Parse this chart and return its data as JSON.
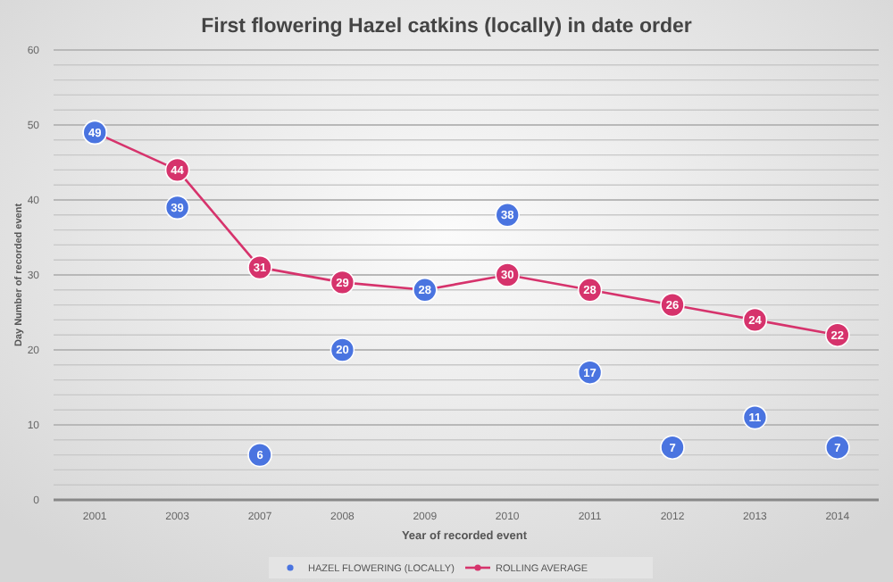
{
  "chart_data": {
    "type": "line",
    "title": "First flowering Hazel catkins (locally) in date order",
    "xlabel": "Year of recorded event",
    "ylabel": "Day Number of recorded event",
    "categories": [
      "2001",
      "2003",
      "2007",
      "2008",
      "2009",
      "2010",
      "2011",
      "2012",
      "2013",
      "2014"
    ],
    "series": [
      {
        "name": "HAZEL FLOWERING (LOCALLY)",
        "type": "scatter",
        "color": "#4a74e0",
        "values": [
          49,
          39,
          6,
          20,
          28,
          38,
          17,
          7,
          11,
          7
        ],
        "value_labels": [
          "49",
          "39",
          "6",
          "20",
          "28",
          "38",
          "17",
          "7",
          "11",
          "7"
        ]
      },
      {
        "name": "ROLLING AVERAGE",
        "color": "#d6336c",
        "values": [
          49,
          44,
          31,
          29,
          28,
          30,
          28,
          26,
          24,
          22
        ],
        "value_labels": [
          null,
          "44",
          "31",
          "29",
          null,
          "30",
          "28",
          "26",
          "24",
          "22"
        ]
      }
    ],
    "ylim": [
      0,
      60
    ],
    "yticks": [
      0,
      10,
      20,
      30,
      40,
      50,
      60
    ],
    "grid": "y",
    "legend": "bottom",
    "marker": "circle",
    "line_style": "solid"
  }
}
